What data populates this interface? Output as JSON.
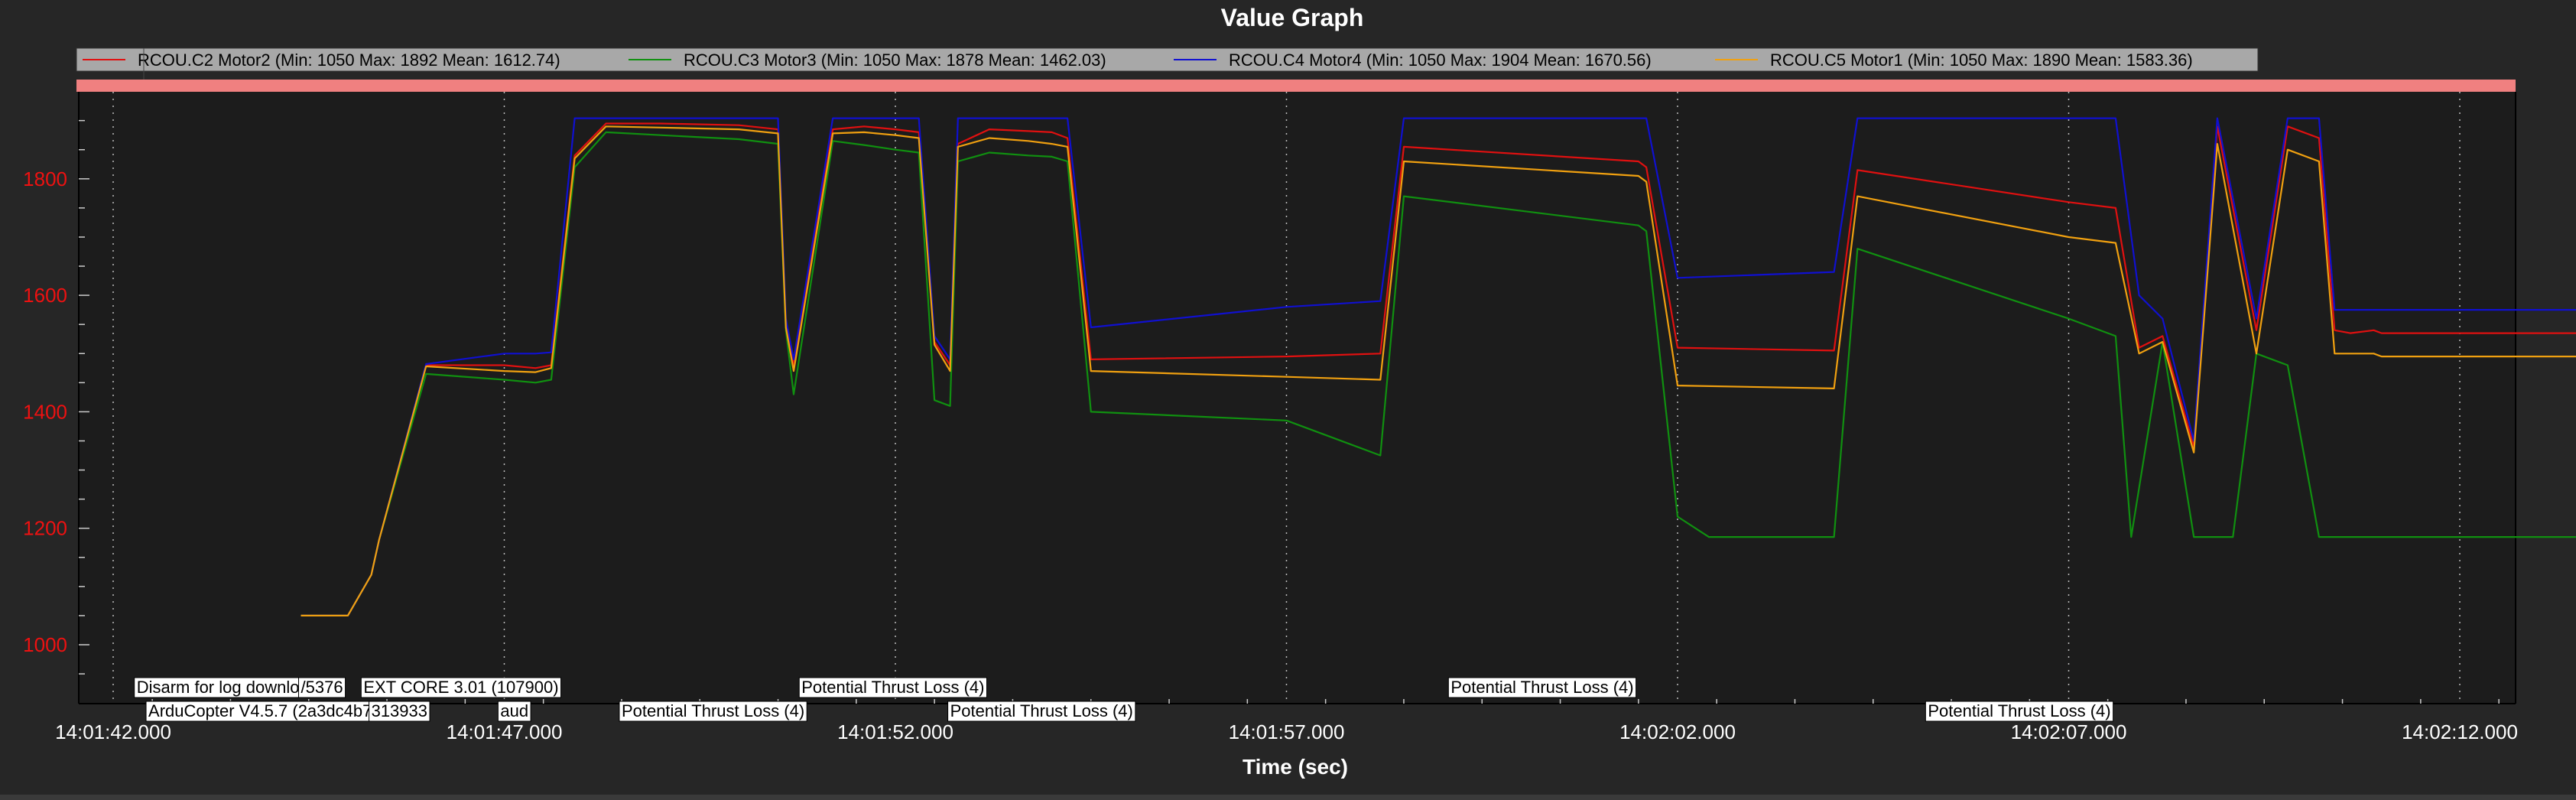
{
  "chart_data": {
    "type": "line",
    "title": "Value Graph",
    "xlabel": "Time (sec)",
    "ylabel": "",
    "xlim": [
      0,
      31.5
    ],
    "ylim": [
      900,
      1955
    ],
    "x_ticks": [
      {
        "x": 0,
        "label": "14:01:42.000"
      },
      {
        "x": 5,
        "label": "14:01:47.000"
      },
      {
        "x": 10,
        "label": "14:01:52.000"
      },
      {
        "x": 15,
        "label": "14:01:57.000"
      },
      {
        "x": 20,
        "label": "14:02:02.000"
      },
      {
        "x": 25,
        "label": "14:02:07.000"
      },
      {
        "x": 30,
        "label": "14:02:12.000"
      }
    ],
    "y_ticks": [
      1000,
      1200,
      1400,
      1600,
      1800
    ],
    "grid": true,
    "legend_position": "top-left",
    "colors": {
      "background": "#262626",
      "plot_bg": "#1c1c1c",
      "legend_bg": "#a8a8a8",
      "status_bar": "#f08080",
      "tick_label": "#ee1111",
      "grid": "#bbbbbb"
    },
    "series": [
      {
        "name": "RCOU.C2 Motor2 (Min: 1050 Max: 1892 Mean: 1612.74)",
        "color": "#e01010",
        "x": [
          2.4,
          2.6,
          2.8,
          3.0,
          3.3,
          3.4,
          4.0,
          5.0,
          5.4,
          5.6,
          5.9,
          6.3,
          7.0,
          8.0,
          8.5,
          8.6,
          8.7,
          9.2,
          9.6,
          10.0,
          10.3,
          10.5,
          10.7,
          10.8,
          11.2,
          11.7,
          12.0,
          12.2,
          12.5,
          15.0,
          16.2,
          16.5,
          19.5,
          19.6,
          20.0,
          22.0,
          22.3,
          25.0,
          25.6,
          25.9,
          26.2,
          26.6,
          26.9,
          27.4,
          27.8,
          28.2,
          28.4,
          28.6,
          28.9,
          29.0,
          29.5,
          30.0,
          31.5
        ],
        "y": [
          1050,
          1050,
          1050,
          1050,
          1120,
          1180,
          1480,
          1480,
          1475,
          1480,
          1840,
          1895,
          1895,
          1892,
          1885,
          1550,
          1480,
          1885,
          1890,
          1885,
          1880,
          1520,
          1480,
          1860,
          1885,
          1882,
          1880,
          1870,
          1490,
          1495,
          1500,
          1855,
          1830,
          1820,
          1510,
          1505,
          1815,
          1760,
          1750,
          1510,
          1530,
          1340,
          1890,
          1540,
          1890,
          1870,
          1540,
          1535,
          1540,
          1535,
          1535,
          1535,
          1535
        ]
      },
      {
        "name": "RCOU.C3 Motor3 (Min: 1050 Max: 1878 Mean: 1462.03)",
        "color": "#109010",
        "x": [
          2.4,
          2.6,
          2.8,
          3.0,
          3.3,
          3.4,
          4.0,
          5.0,
          5.4,
          5.6,
          5.9,
          6.3,
          7.0,
          8.0,
          8.5,
          8.6,
          8.7,
          9.2,
          9.6,
          10.0,
          10.3,
          10.5,
          10.7,
          10.8,
          11.2,
          11.7,
          12.0,
          12.2,
          12.5,
          15.0,
          16.2,
          16.5,
          19.5,
          19.6,
          20.0,
          20.4,
          21.0,
          22.0,
          22.3,
          25.0,
          25.6,
          25.8,
          26.2,
          26.6,
          26.9,
          27.1,
          27.4,
          27.8,
          28.2,
          28.4,
          28.6,
          28.9,
          29.0,
          29.5,
          30.0,
          31.5
        ],
        "y": [
          1050,
          1050,
          1050,
          1050,
          1120,
          1180,
          1465,
          1455,
          1450,
          1455,
          1820,
          1880,
          1875,
          1868,
          1860,
          1540,
          1430,
          1865,
          1858,
          1850,
          1845,
          1420,
          1410,
          1830,
          1845,
          1840,
          1838,
          1830,
          1400,
          1385,
          1325,
          1770,
          1720,
          1710,
          1220,
          1185,
          1185,
          1185,
          1680,
          1560,
          1530,
          1185,
          1520,
          1185,
          1185,
          1185,
          1500,
          1480,
          1185,
          1185,
          1185,
          1185,
          1185,
          1185,
          1185,
          1185
        ]
      },
      {
        "name": "RCOU.C4 Motor4 (Min: 1050 Max: 1904 Mean: 1670.56)",
        "color": "#1010d0",
        "x": [
          2.4,
          2.6,
          2.8,
          3.0,
          3.3,
          3.4,
          4.0,
          5.0,
          5.4,
          5.6,
          5.9,
          6.3,
          7.0,
          8.0,
          8.5,
          8.6,
          8.7,
          9.2,
          9.6,
          10.0,
          10.3,
          10.5,
          10.7,
          10.8,
          11.2,
          11.7,
          12.0,
          12.2,
          12.5,
          15.0,
          16.2,
          16.5,
          19.5,
          19.6,
          20.0,
          22.0,
          22.3,
          25.0,
          25.6,
          25.9,
          26.2,
          26.6,
          26.9,
          27.4,
          27.8,
          28.2,
          28.4,
          28.6,
          28.9,
          29.0,
          29.5,
          30.0,
          31.5
        ],
        "y": [
          1050,
          1050,
          1050,
          1050,
          1120,
          1180,
          1482,
          1500,
          1500,
          1502,
          1904,
          1904,
          1904,
          1904,
          1904,
          1560,
          1490,
          1904,
          1904,
          1904,
          1904,
          1530,
          1490,
          1904,
          1904,
          1904,
          1904,
          1904,
          1545,
          1580,
          1590,
          1904,
          1904,
          1904,
          1630,
          1640,
          1904,
          1904,
          1904,
          1600,
          1560,
          1350,
          1904,
          1560,
          1904,
          1904,
          1575,
          1575,
          1575,
          1575,
          1575,
          1575,
          1575
        ]
      },
      {
        "name": "RCOU.C5 Motor1 (Min: 1050 Max: 1890 Mean: 1583.36)",
        "color": "#f0a010",
        "x": [
          2.4,
          2.6,
          2.8,
          3.0,
          3.3,
          3.4,
          4.0,
          5.0,
          5.4,
          5.6,
          5.9,
          6.3,
          7.0,
          8.0,
          8.5,
          8.6,
          8.7,
          9.2,
          9.6,
          10.0,
          10.3,
          10.5,
          10.7,
          10.8,
          11.2,
          11.7,
          12.0,
          12.2,
          12.5,
          15.0,
          16.2,
          16.5,
          19.5,
          19.6,
          20.0,
          22.0,
          22.3,
          25.0,
          25.6,
          25.9,
          26.2,
          26.6,
          26.9,
          27.4,
          27.8,
          28.2,
          28.4,
          28.6,
          28.9,
          29.0,
          29.5,
          30.0,
          31.5
        ],
        "y": [
          1050,
          1050,
          1050,
          1050,
          1120,
          1180,
          1478,
          1470,
          1468,
          1475,
          1835,
          1890,
          1888,
          1885,
          1878,
          1545,
          1470,
          1878,
          1880,
          1875,
          1870,
          1515,
          1470,
          1855,
          1870,
          1865,
          1860,
          1855,
          1470,
          1460,
          1455,
          1830,
          1805,
          1795,
          1445,
          1440,
          1770,
          1700,
          1690,
          1500,
          1520,
          1330,
          1860,
          1500,
          1850,
          1830,
          1500,
          1500,
          1500,
          1495,
          1495,
          1495,
          1495
        ]
      }
    ],
    "annotations": [
      {
        "x": 0.3,
        "row": 1,
        "text": "Disarm for log download"
      },
      {
        "x": 2.4,
        "row": 1,
        "text": "/5376"
      },
      {
        "x": 3.2,
        "row": 1,
        "text": "EXT CORE 3.01 (107900)"
      },
      {
        "x": 0.45,
        "row": 2,
        "text": "ArduCopter V4.5.7 (2a3dc4b7)"
      },
      {
        "x": 3.3,
        "row": 2,
        "text": "313933"
      },
      {
        "x": 4.95,
        "row": 2,
        "text": "aud"
      },
      {
        "x": 6.5,
        "row": 2,
        "text": "Potential Thrust Loss (4)"
      },
      {
        "x": 8.8,
        "row": 1,
        "text": "Potential Thrust Loss (4)"
      },
      {
        "x": 10.7,
        "row": 2,
        "text": "Potential Thrust Loss (4)"
      },
      {
        "x": 17.1,
        "row": 1,
        "text": "Potential Thrust Loss (4)"
      },
      {
        "x": 23.2,
        "row": 2,
        "text": "Potential Thrust Loss (4)"
      }
    ]
  }
}
